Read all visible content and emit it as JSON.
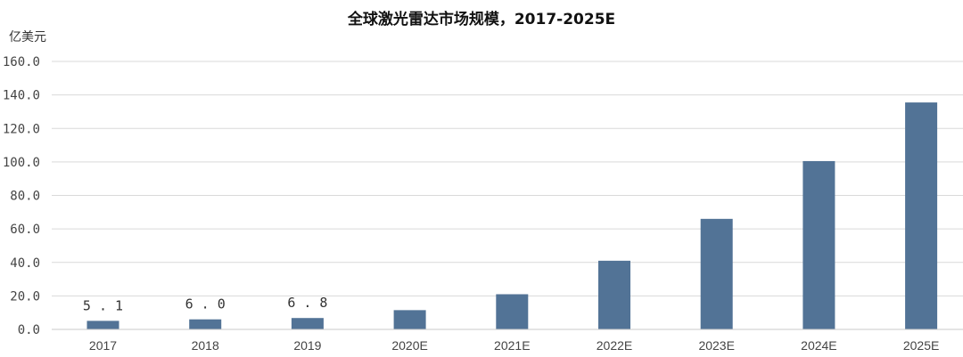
{
  "chart_data": {
    "type": "bar",
    "title": "全球激光雷达市场规模，2017-2025E",
    "ylabel": "亿美元",
    "xlabel": "",
    "categories": [
      "2017",
      "2018",
      "2019",
      "2020E",
      "2021E",
      "2022E",
      "2023E",
      "2024E",
      "2025E"
    ],
    "values": [
      5.1,
      6.0,
      6.8,
      11.5,
      21.0,
      41.0,
      66.0,
      100.5,
      135.5
    ],
    "data_labels": [
      "5.1",
      "6.0",
      "6.8",
      "",
      "",
      "",
      "",
      "",
      ""
    ],
    "y_ticks": [
      "0.0",
      "20.0",
      "40.0",
      "60.0",
      "80.0",
      "100.0",
      "120.0",
      "140.0",
      "160.0"
    ],
    "ylim": [
      0,
      160
    ],
    "grid": true,
    "legend": "none",
    "bar_color": "#527396"
  }
}
